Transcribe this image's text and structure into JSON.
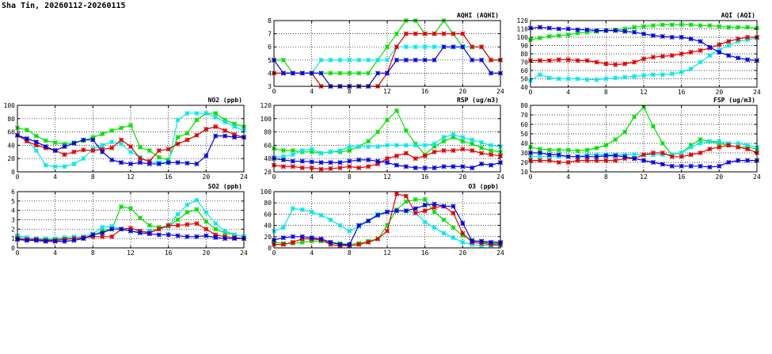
{
  "page_title": "Sha Tin, 20260112-20260115",
  "series_colors": [
    "#00e000",
    "#00e8e8",
    "#e00000",
    "#0000e0"
  ],
  "chart_data": [
    {
      "type": "line",
      "title": "AQHI (AQHI)",
      "xlim": [
        0,
        24
      ],
      "ylim": [
        3,
        8
      ],
      "xticks": [
        0,
        4,
        8,
        12,
        16,
        20,
        24
      ],
      "yticks": [
        3,
        4,
        5,
        6,
        7,
        8
      ],
      "grid": true,
      "series": [
        {
          "color": "#00e000",
          "values": [
            5,
            5,
            4,
            4,
            4,
            4,
            4,
            4,
            4,
            4,
            4,
            5,
            6,
            7,
            8,
            8,
            7,
            7,
            8,
            7,
            6,
            6,
            6,
            5,
            5
          ]
        },
        {
          "color": "#00e8e8",
          "values": [
            4,
            4,
            4,
            4,
            4,
            5,
            5,
            5,
            5,
            5,
            5,
            5,
            5,
            6,
            6,
            6,
            6,
            6,
            6,
            6,
            6,
            6,
            6,
            5,
            5
          ]
        },
        {
          "color": "#e00000",
          "values": [
            4,
            4,
            4,
            4,
            4,
            3,
            3,
            3,
            3,
            3,
            3,
            3,
            4,
            6,
            7,
            7,
            7,
            7,
            7,
            7,
            7,
            6,
            6,
            5,
            5
          ]
        },
        {
          "color": "#0000e0",
          "values": [
            5,
            4,
            4,
            4,
            4,
            4,
            3,
            3,
            3,
            3,
            3,
            4,
            4,
            5,
            5,
            5,
            5,
            5,
            6,
            6,
            6,
            5,
            5,
            4,
            4
          ]
        }
      ]
    },
    {
      "type": "line",
      "title": "AQI (AQI)",
      "xlim": [
        0,
        24
      ],
      "ylim": [
        40,
        120
      ],
      "xticks": [
        0,
        4,
        8,
        12,
        16,
        20,
        24
      ],
      "yticks": [
        40,
        50,
        60,
        70,
        80,
        90,
        100,
        110,
        120
      ],
      "grid": true,
      "series": [
        {
          "color": "#00e000",
          "values": [
            97,
            99,
            101,
            102,
            103,
            105,
            106,
            107,
            108,
            109,
            110,
            112,
            113,
            114,
            115,
            115,
            115,
            115,
            114,
            114,
            113,
            112,
            112,
            112,
            111
          ]
        },
        {
          "color": "#00e8e8",
          "values": [
            48,
            55,
            51,
            50,
            50,
            50,
            49,
            49,
            50,
            51,
            52,
            53,
            54,
            55,
            55,
            56,
            58,
            62,
            70,
            78,
            85,
            90,
            95,
            97,
            99
          ]
        },
        {
          "color": "#e00000",
          "values": [
            72,
            72,
            72,
            73,
            73,
            72,
            72,
            70,
            68,
            67,
            68,
            70,
            74,
            76,
            77,
            78,
            80,
            82,
            84,
            87,
            91,
            95,
            98,
            100,
            100
          ]
        },
        {
          "color": "#0000e0",
          "values": [
            111,
            112,
            111,
            110,
            110,
            109,
            109,
            108,
            108,
            108,
            107,
            106,
            104,
            102,
            101,
            100,
            100,
            98,
            95,
            88,
            82,
            78,
            75,
            73,
            72
          ]
        }
      ]
    },
    {
      "type": "line",
      "title": "NO2 (ppb)",
      "xlim": [
        0,
        24
      ],
      "ylim": [
        0,
        100
      ],
      "xticks": [
        0,
        4,
        8,
        12,
        16,
        20,
        24
      ],
      "yticks": [
        0,
        20,
        40,
        60,
        80,
        100
      ],
      "grid": true,
      "series": [
        {
          "color": "#00e000",
          "values": [
            66,
            63,
            54,
            47,
            44,
            42,
            44,
            47,
            52,
            57,
            62,
            66,
            70,
            37,
            32,
            22,
            18,
            52,
            58,
            78,
            88,
            88,
            78,
            72,
            68
          ]
        },
        {
          "color": "#00e8e8",
          "values": [
            55,
            48,
            32,
            10,
            8,
            8,
            12,
            20,
            35,
            40,
            45,
            42,
            30,
            22,
            15,
            14,
            14,
            78,
            88,
            88,
            88,
            82,
            75,
            68,
            62
          ]
        },
        {
          "color": "#e00000",
          "values": [
            55,
            46,
            40,
            36,
            32,
            26,
            30,
            33,
            32,
            34,
            36,
            48,
            38,
            20,
            16,
            32,
            34,
            42,
            48,
            55,
            64,
            68,
            62,
            56,
            52
          ]
        },
        {
          "color": "#0000e0",
          "values": [
            55,
            50,
            45,
            38,
            32,
            38,
            43,
            48,
            48,
            30,
            18,
            14,
            12,
            14,
            12,
            12,
            14,
            14,
            13,
            12,
            24,
            54,
            54,
            52,
            52
          ]
        }
      ]
    },
    {
      "type": "line",
      "title": "RSP (ug/m3)",
      "xlim": [
        0,
        24
      ],
      "ylim": [
        20,
        120
      ],
      "xticks": [
        0,
        4,
        8,
        12,
        16,
        20,
        24
      ],
      "yticks": [
        20,
        40,
        60,
        80,
        100,
        120
      ],
      "grid": true,
      "series": [
        {
          "color": "#00e000",
          "values": [
            55,
            52,
            52,
            50,
            50,
            48,
            50,
            50,
            52,
            58,
            66,
            80,
            98,
            112,
            82,
            62,
            46,
            58,
            66,
            72,
            66,
            62,
            56,
            52,
            50
          ]
        },
        {
          "color": "#00e8e8",
          "values": [
            42,
            43,
            46,
            52,
            54,
            48,
            50,
            52,
            58,
            58,
            58,
            58,
            60,
            60,
            60,
            60,
            60,
            62,
            72,
            76,
            72,
            68,
            64,
            60,
            58
          ]
        },
        {
          "color": "#e00000",
          "values": [
            30,
            28,
            28,
            26,
            26,
            24,
            25,
            26,
            28,
            26,
            28,
            32,
            40,
            44,
            48,
            40,
            44,
            50,
            52,
            52,
            54,
            52,
            48,
            46,
            44
          ]
        },
        {
          "color": "#0000e0",
          "values": [
            40,
            38,
            36,
            36,
            35,
            34,
            34,
            34,
            36,
            38,
            38,
            36,
            34,
            30,
            28,
            26,
            26,
            26,
            28,
            28,
            28,
            26,
            32,
            30,
            34
          ]
        }
      ]
    },
    {
      "type": "line",
      "title": "FSP (ug/m3)",
      "xlim": [
        0,
        24
      ],
      "ylim": [
        10,
        80
      ],
      "xticks": [
        0,
        4,
        8,
        12,
        16,
        20,
        24
      ],
      "yticks": [
        10,
        20,
        30,
        40,
        50,
        60,
        70,
        80
      ],
      "grid": true,
      "series": [
        {
          "color": "#00e000",
          "values": [
            36,
            34,
            33,
            33,
            33,
            32,
            33,
            35,
            38,
            44,
            52,
            68,
            78,
            58,
            40,
            28,
            30,
            38,
            44,
            42,
            40,
            38,
            36,
            36,
            34
          ]
        },
        {
          "color": "#00e8e8",
          "values": [
            26,
            26,
            26,
            26,
            26,
            26,
            28,
            28,
            28,
            28,
            28,
            28,
            28,
            28,
            28,
            28,
            30,
            36,
            40,
            42,
            42,
            40,
            40,
            38,
            36
          ]
        },
        {
          "color": "#e00000",
          "values": [
            22,
            22,
            22,
            20,
            20,
            22,
            22,
            22,
            22,
            22,
            24,
            24,
            28,
            30,
            30,
            26,
            26,
            28,
            30,
            34,
            36,
            38,
            36,
            34,
            30
          ]
        },
        {
          "color": "#0000e0",
          "values": [
            30,
            30,
            28,
            28,
            26,
            26,
            26,
            26,
            27,
            27,
            26,
            24,
            22,
            20,
            18,
            16,
            16,
            16,
            16,
            15,
            16,
            20,
            22,
            22,
            22
          ]
        }
      ]
    },
    {
      "type": "line",
      "title": "SO2 (ppb)",
      "xlim": [
        0,
        24
      ],
      "ylim": [
        0,
        6
      ],
      "xticks": [
        0,
        4,
        8,
        12,
        16,
        20,
        24
      ],
      "yticks": [
        0,
        1,
        2,
        3,
        4,
        5,
        6
      ],
      "grid": true,
      "series": [
        {
          "color": "#00e000",
          "values": [
            1.2,
            1.1,
            1.0,
            0.9,
            0.9,
            1.0,
            1.0,
            1.0,
            1.3,
            1.8,
            2.0,
            4.4,
            4.2,
            3.2,
            2.4,
            2.2,
            2.3,
            3.0,
            3.8,
            4.1,
            2.8,
            2.0,
            1.6,
            1.4,
            1.2
          ]
        },
        {
          "color": "#00e8e8",
          "values": [
            1.3,
            1.1,
            1.0,
            1.0,
            1.0,
            1.1,
            1.2,
            1.2,
            1.5,
            2.2,
            2.3,
            2.0,
            1.8,
            1.7,
            1.8,
            2.0,
            2.3,
            3.6,
            4.6,
            5.1,
            3.8,
            2.6,
            1.8,
            1.4,
            1.2
          ]
        },
        {
          "color": "#e00000",
          "values": [
            1.0,
            0.9,
            0.9,
            0.8,
            0.8,
            0.9,
            1.0,
            1.1,
            1.2,
            1.2,
            1.2,
            2.0,
            2.1,
            1.8,
            1.6,
            2.0,
            2.4,
            2.4,
            2.5,
            2.6,
            2.0,
            1.4,
            1.2,
            1.1,
            1.0
          ]
        },
        {
          "color": "#0000e0",
          "values": [
            0.9,
            0.8,
            0.8,
            0.7,
            0.7,
            0.7,
            0.8,
            1.0,
            1.4,
            1.6,
            2.0,
            2.0,
            1.8,
            1.6,
            1.5,
            1.4,
            1.4,
            1.3,
            1.2,
            1.2,
            1.3,
            1.1,
            1.0,
            1.0,
            1.0
          ]
        }
      ]
    },
    {
      "type": "line",
      "title": "O3 (ppb)",
      "xlim": [
        0,
        24
      ],
      "ylim": [
        0,
        100
      ],
      "xticks": [
        0,
        4,
        8,
        12,
        16,
        20,
        24
      ],
      "yticks": [
        0,
        20,
        40,
        60,
        80,
        100
      ],
      "grid": true,
      "series": [
        {
          "color": "#00e000",
          "values": [
            10,
            8,
            8,
            10,
            12,
            12,
            10,
            8,
            6,
            8,
            12,
            16,
            40,
            68,
            82,
            86,
            86,
            64,
            50,
            36,
            22,
            14,
            10,
            8,
            8
          ]
        },
        {
          "color": "#00e8e8",
          "values": [
            30,
            36,
            70,
            68,
            64,
            58,
            50,
            40,
            30,
            38,
            48,
            60,
            64,
            66,
            66,
            62,
            46,
            36,
            26,
            18,
            10,
            6,
            4,
            4,
            4
          ]
        },
        {
          "color": "#e00000",
          "values": [
            6,
            6,
            10,
            16,
            16,
            14,
            6,
            4,
            4,
            6,
            10,
            16,
            30,
            96,
            92,
            62,
            66,
            72,
            74,
            62,
            26,
            10,
            8,
            6,
            6
          ]
        },
        {
          "color": "#0000e0",
          "values": [
            14,
            18,
            20,
            20,
            18,
            16,
            10,
            6,
            6,
            40,
            48,
            58,
            64,
            66,
            66,
            70,
            76,
            78,
            74,
            74,
            44,
            12,
            12,
            10,
            10
          ]
        }
      ]
    }
  ]
}
